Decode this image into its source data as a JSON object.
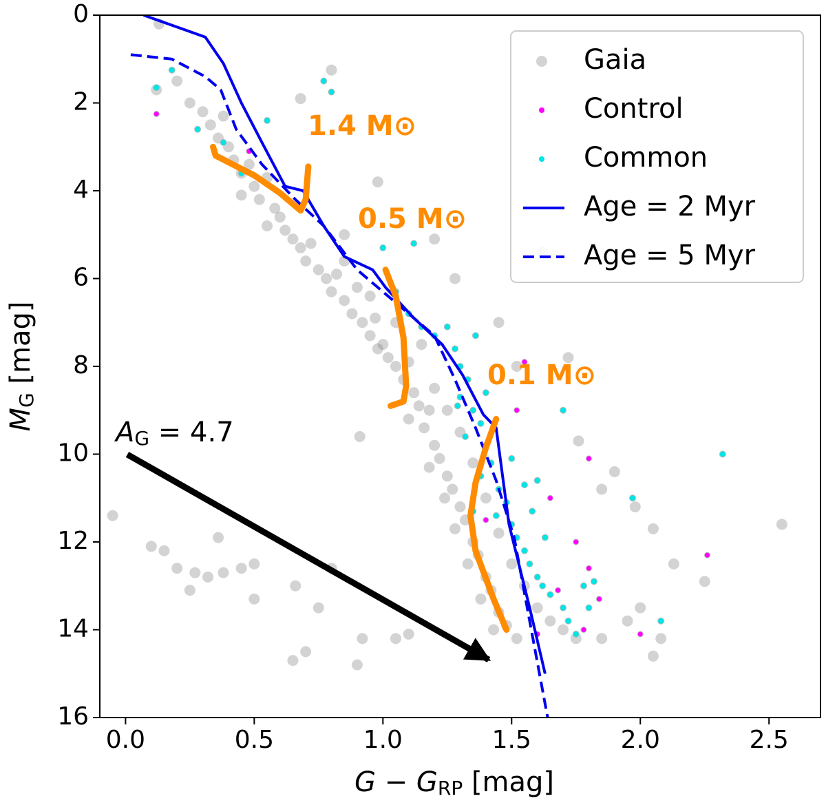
{
  "chart_data": {
    "type": "scatter",
    "xlabel_parts": [
      "G − G",
      "RP",
      " [mag]"
    ],
    "ylabel_parts": [
      "M",
      "G",
      " [mag]"
    ],
    "xlim": [
      -0.1,
      2.7
    ],
    "ylim": [
      16,
      0
    ],
    "y_inverted": true,
    "xticks": [
      {
        "value": 0,
        "label": "0.0"
      },
      {
        "value": 0.5,
        "label": "0.5"
      },
      {
        "value": 1,
        "label": "1.0"
      },
      {
        "value": 1.5,
        "label": "1.5"
      },
      {
        "value": 2,
        "label": "2.0"
      },
      {
        "value": 2.5,
        "label": "2.5"
      }
    ],
    "yticks": [
      0,
      2,
      4,
      6,
      8,
      10,
      12,
      14,
      16
    ],
    "legend": "upper right",
    "series": [
      {
        "name": "Gaia",
        "style": "marker",
        "color": "#808080",
        "x": [
          0.13,
          0.8,
          0.12,
          0.2,
          0.25,
          0.3,
          0.33,
          0.36,
          0.38,
          0.4,
          0.42,
          0.45,
          0.48,
          0.5,
          0.52,
          0.55,
          0.45,
          0.58,
          0.6,
          0.62,
          0.65,
          0.55,
          0.68,
          0.7,
          0.72,
          0.75,
          0.78,
          0.8,
          0.82,
          0.85,
          0.88,
          0.9,
          0.92,
          0.95,
          0.97,
          1.0,
          1.02,
          0.98,
          1.05,
          1.08,
          1.1,
          1.12,
          1.14,
          1.1,
          1.16,
          1.18,
          1.2,
          1.22,
          1.18,
          1.25,
          1.27,
          1.24,
          1.3,
          1.32,
          1.28,
          1.35,
          1.37,
          1.33,
          1.4,
          1.42,
          1.38,
          1.45,
          1.48,
          1.43,
          1.52,
          1.3,
          1.35,
          1.4,
          1.45,
          1.5,
          1.55,
          1.6,
          1.65,
          1.7,
          1.75,
          1.2,
          1.25,
          1.15,
          1.05,
          0.95,
          0.85,
          -0.05,
          0.1,
          0.15,
          0.2,
          0.25,
          0.27,
          0.32,
          0.36,
          0.38,
          0.45,
          0.5,
          0.5,
          0.66,
          0.75,
          0.8,
          0.7,
          0.65,
          0.9,
          0.92,
          1.05,
          1.1,
          0.91,
          0.85,
          0.98,
          1.52,
          1.62,
          1.85,
          1.9,
          1.98,
          2.05,
          2.13,
          2.25,
          2.55,
          2.0,
          2.08,
          1.95,
          1.85,
          2.05,
          1.76,
          1.72,
          1.45,
          1.28,
          1.2,
          0.68
        ],
        "y": [
          0.2,
          1.25,
          1.7,
          1.5,
          2.0,
          2.2,
          2.5,
          2.8,
          2.3,
          3.0,
          3.3,
          3.6,
          3.4,
          3.9,
          4.2,
          3.7,
          4.1,
          4.4,
          4.6,
          4.9,
          5.1,
          4.8,
          5.3,
          5.6,
          5.2,
          5.8,
          6.0,
          6.3,
          5.9,
          6.5,
          6.8,
          6.2,
          7.0,
          7.3,
          6.9,
          7.5,
          7.8,
          7.6,
          8.0,
          8.3,
          7.9,
          8.6,
          8.9,
          9.2,
          9.4,
          9.0,
          9.8,
          10.1,
          10.3,
          10.5,
          10.8,
          11.0,
          11.2,
          11.5,
          11.7,
          12.0,
          12.3,
          12.5,
          12.8,
          13.1,
          13.3,
          13.6,
          13.9,
          14.0,
          14.2,
          9.5,
          10.2,
          11.0,
          11.8,
          12.5,
          13.0,
          13.5,
          13.8,
          14.0,
          14.2,
          8.5,
          9.0,
          7.5,
          7.0,
          6.4,
          5.6,
          11.4,
          12.1,
          12.2,
          12.6,
          13.1,
          12.7,
          12.8,
          11.9,
          12.7,
          12.6,
          12.5,
          13.3,
          13.0,
          13.5,
          12.6,
          14.5,
          14.7,
          14.8,
          14.2,
          14.2,
          14.1,
          9.6,
          5.0,
          3.8,
          8.0,
          5.4,
          10.8,
          10.4,
          11.2,
          11.7,
          12.5,
          12.9,
          11.6,
          13.5,
          14.2,
          13.8,
          14.2,
          14.6,
          9.7,
          7.8,
          7.0,
          6.0,
          5.1,
          1.9
        ]
      },
      {
        "name": "Control",
        "style": "marker",
        "color": "#ff00ff",
        "x": [
          0.12,
          0.48,
          1.55,
          1.52,
          1.8,
          1.75,
          1.8,
          1.84,
          1.68,
          1.6,
          2.0,
          2.26,
          1.4,
          1.78,
          1.65
        ],
        "y": [
          2.25,
          3.1,
          7.9,
          9.0,
          10.1,
          12.0,
          12.6,
          13.3,
          13.1,
          14.1,
          14.1,
          12.3,
          11.5,
          14.0,
          11.0
        ]
      },
      {
        "name": "Common",
        "style": "marker",
        "color": "#00e5e5",
        "x": [
          0.18,
          0.12,
          0.28,
          0.38,
          0.55,
          0.8,
          0.77,
          0.45,
          1.0,
          1.12,
          1.05,
          1.1,
          1.15,
          1.2,
          1.25,
          1.28,
          1.3,
          1.33,
          1.3,
          1.35,
          1.38,
          1.32,
          1.4,
          1.42,
          1.38,
          1.45,
          1.48,
          1.44,
          1.5,
          1.52,
          1.55,
          1.57,
          1.6,
          1.62,
          1.65,
          1.7,
          1.72,
          1.75,
          1.78,
          1.8,
          1.58,
          1.63,
          1.36,
          1.29,
          1.35,
          1.55,
          1.7,
          2.08,
          2.32,
          1.97,
          1.82,
          1.5,
          1.6,
          1.4
        ],
        "y": [
          1.25,
          1.65,
          2.6,
          2.9,
          2.4,
          1.75,
          1.5,
          3.6,
          5.3,
          5.2,
          6.3,
          6.8,
          7.1,
          7.3,
          7.1,
          7.6,
          8.0,
          8.3,
          8.7,
          9.0,
          9.3,
          9.6,
          9.8,
          10.2,
          10.5,
          10.8,
          11.1,
          11.4,
          11.6,
          11.9,
          12.2,
          12.5,
          12.8,
          13.0,
          13.2,
          13.5,
          13.8,
          14.1,
          13.0,
          13.5,
          11.3,
          11.9,
          7.3,
          8.9,
          11.3,
          10.7,
          9.0,
          13.8,
          10.0,
          11.0,
          12.9,
          10.1,
          10.6,
          8.6
        ]
      },
      {
        "name": "Age = 2 Myr",
        "style": "solid",
        "color": "#0000ee",
        "x": [
          0.07,
          0.31,
          0.38,
          0.45,
          0.53,
          0.62,
          0.69,
          0.77,
          0.85,
          0.96,
          1.01,
          1.12,
          1.23,
          1.31,
          1.39,
          1.44,
          1.49,
          1.57,
          1.63
        ],
        "y": [
          0,
          0.5,
          1.1,
          2.0,
          2.9,
          3.9,
          4.0,
          4.8,
          5.5,
          5.8,
          6.2,
          6.9,
          7.5,
          8.2,
          9.1,
          9.4,
          11.6,
          13.5,
          15.0
        ]
      },
      {
        "name": "Age = 5 Myr",
        "style": "dashed",
        "color": "#0000ee",
        "x": [
          0.02,
          0.18,
          0.31,
          0.37,
          0.43,
          0.53,
          0.66,
          0.77,
          0.9,
          1.06,
          1.2,
          1.28,
          1.36,
          1.44,
          1.51,
          1.57,
          1.64
        ],
        "y": [
          0.9,
          1.0,
          1.4,
          1.7,
          2.6,
          3.4,
          4.2,
          4.8,
          5.8,
          6.6,
          7.3,
          8.3,
          9.4,
          10.6,
          11.9,
          13.8,
          16
        ]
      }
    ],
    "mass_tracks": [
      {
        "label": "1.4 M⊙",
        "color": "#ff8c00",
        "x": [
          0.34,
          0.35,
          0.5,
          0.6,
          0.68,
          0.7,
          0.71
        ],
        "y": [
          3.0,
          3.2,
          3.65,
          4.05,
          4.45,
          4.2,
          3.45
        ]
      },
      {
        "label": "0.5 M⊙",
        "color": "#ff8c00",
        "x": [
          1.01,
          1.05,
          1.08,
          1.09,
          1.08,
          1.03
        ],
        "y": [
          5.8,
          6.4,
          7.35,
          8.45,
          8.8,
          8.9
        ]
      },
      {
        "label": "0.1 M⊙",
        "color": "#ff8c00",
        "x": [
          1.44,
          1.4,
          1.36,
          1.34,
          1.36,
          1.43,
          1.48
        ],
        "y": [
          9.2,
          9.85,
          10.65,
          11.4,
          12.2,
          13.3,
          14.0
        ]
      }
    ],
    "annotation_parts": [
      "A",
      "G",
      " = 4.7"
    ]
  }
}
